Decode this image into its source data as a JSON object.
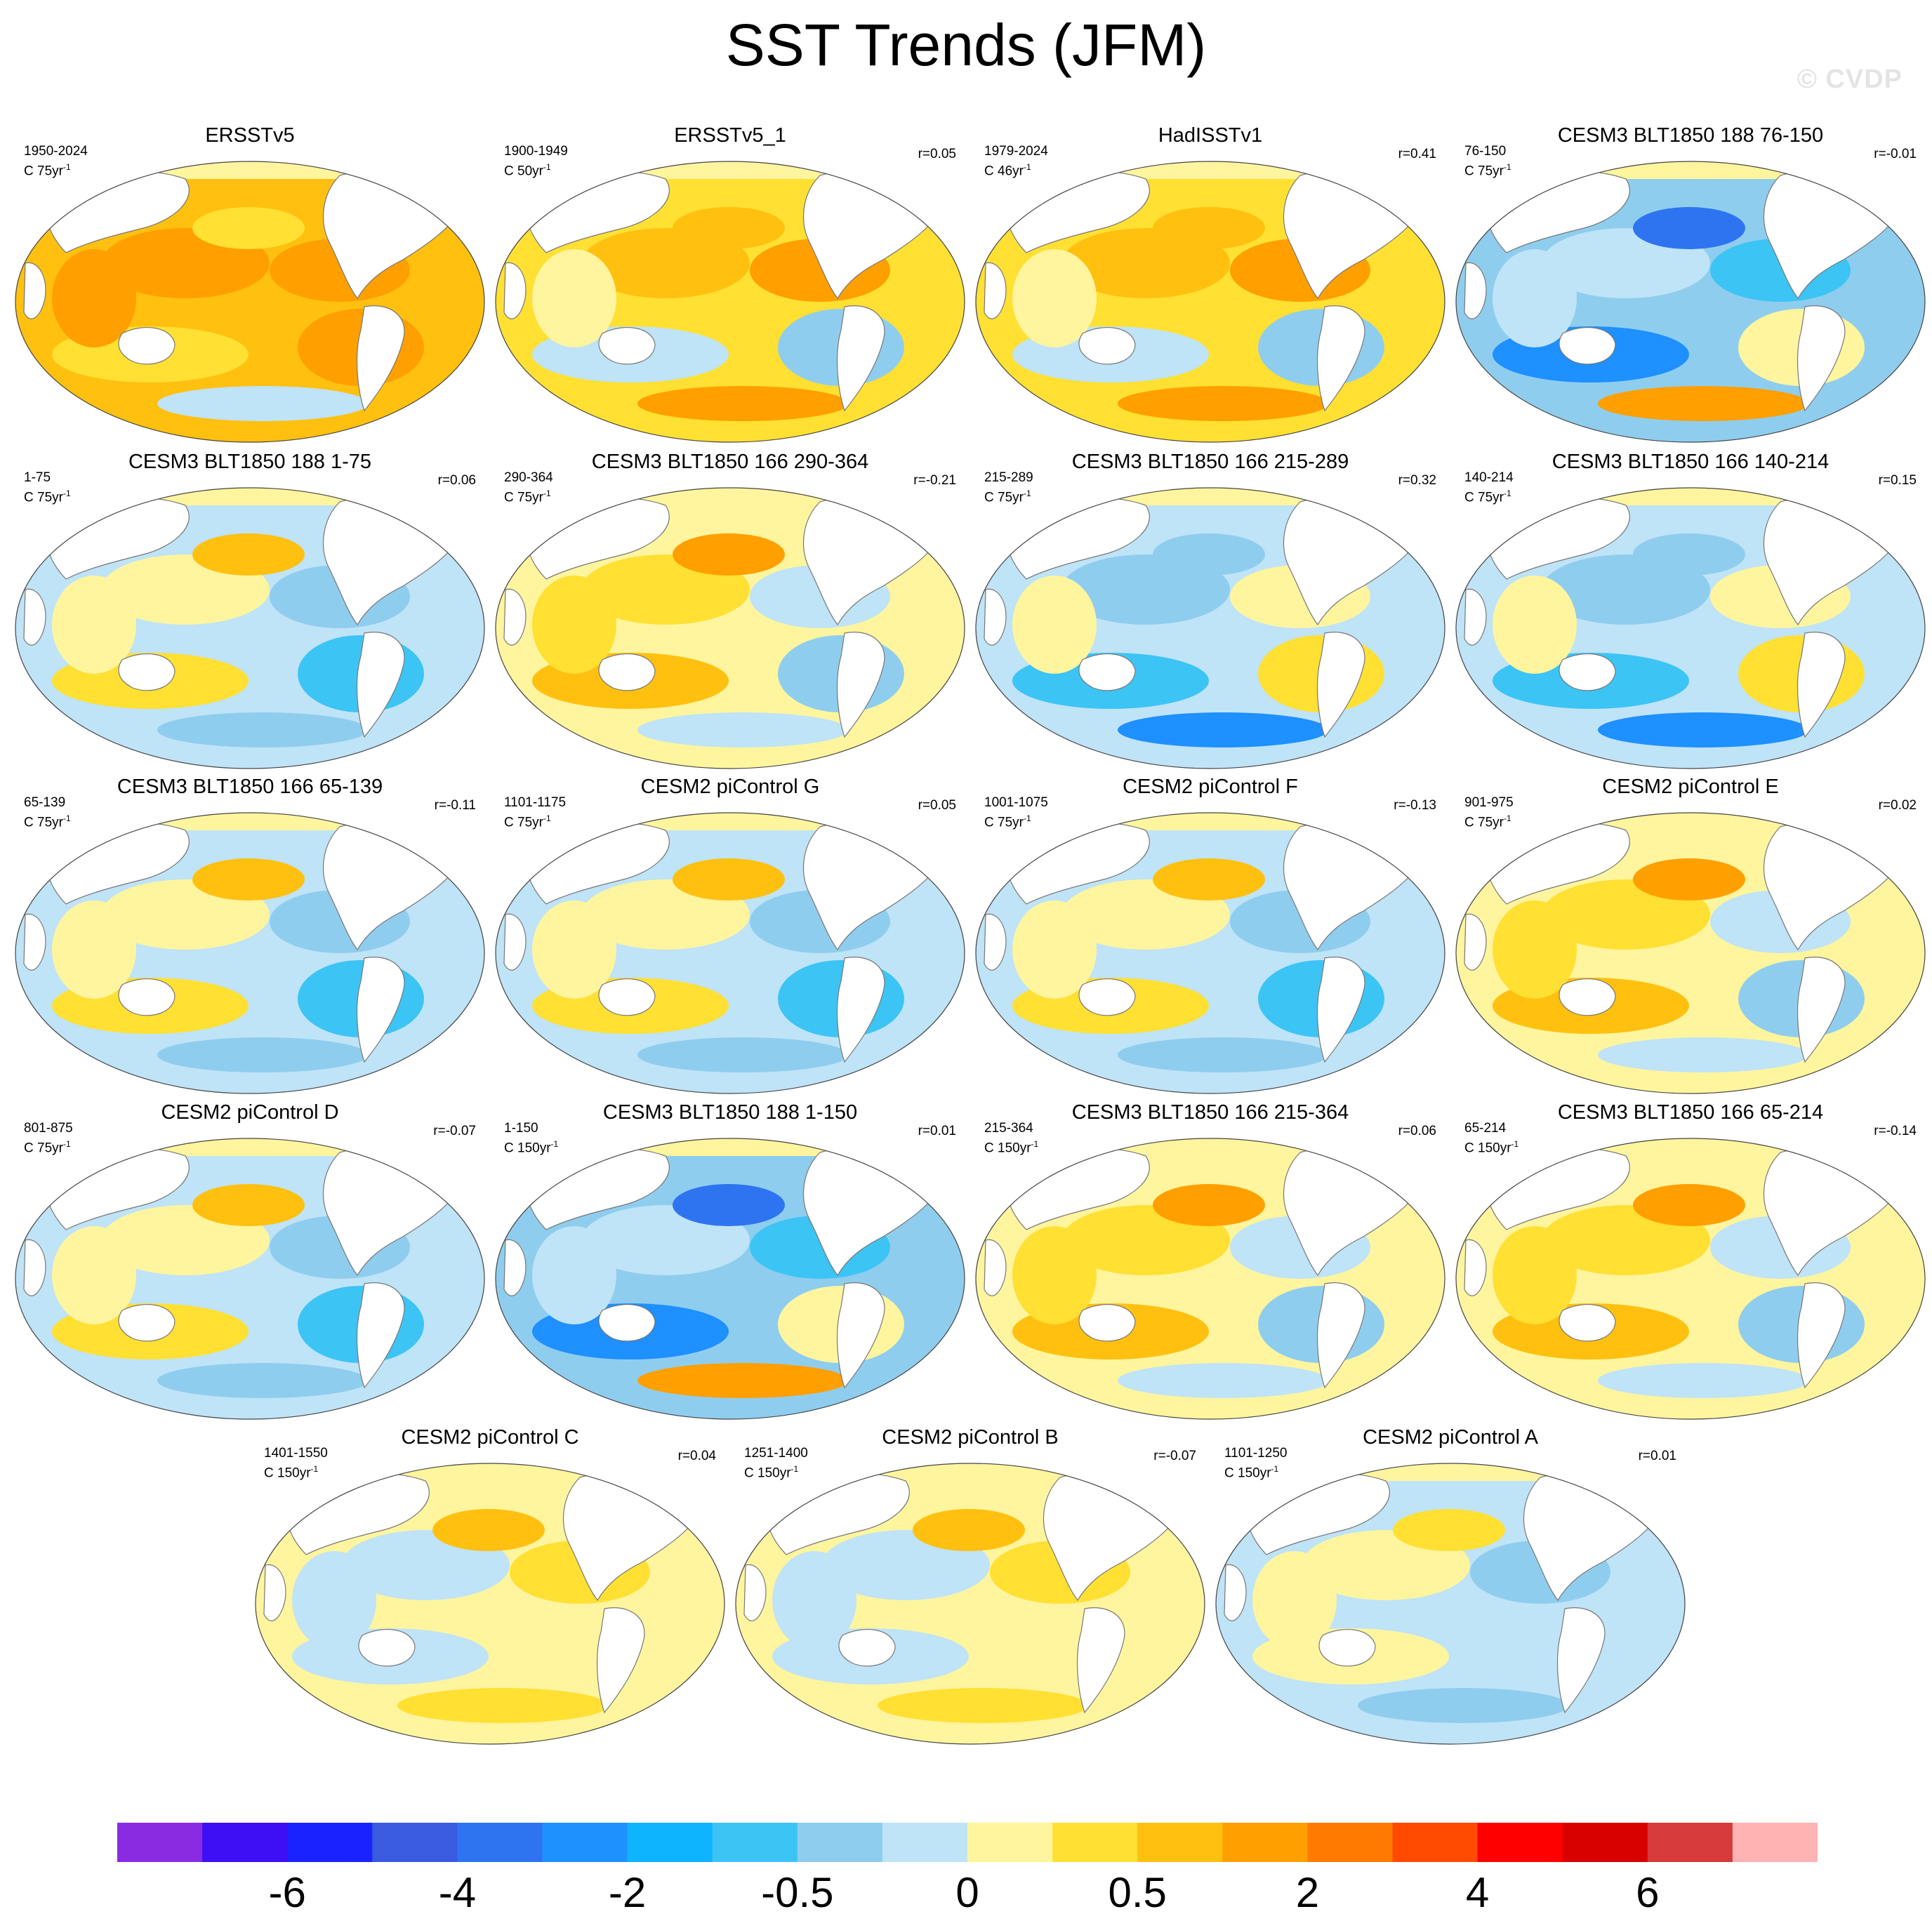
{
  "title": "SST Trends (JFM)",
  "watermark": "© CVDP",
  "panels": [
    {
      "title": "ERSSTv5",
      "period": "1950-2024",
      "units_base": "C 75yr",
      "units_exp": "-1",
      "corr": "",
      "palette": "warm_strong"
    },
    {
      "title": "ERSSTv5_1",
      "period": "1900-1949",
      "units_base": "C 50yr",
      "units_exp": "-1",
      "corr": "r=0.05",
      "palette": "warm"
    },
    {
      "title": "HadISSTv1",
      "period": "1979-2024",
      "units_base": "C 46yr",
      "units_exp": "-1",
      "corr": "r=0.41",
      "palette": "warm"
    },
    {
      "title": "CESM3 BLT1850 188 76-150",
      "period": "76-150",
      "units_base": "C 75yr",
      "units_exp": "-1",
      "corr": "r=-0.01",
      "palette": "cool_strong"
    },
    {
      "title": "CESM3 BLT1850 188 1-75",
      "period": "1-75",
      "units_base": "C 75yr",
      "units_exp": "-1",
      "corr": "r=0.06",
      "palette": "mixed"
    },
    {
      "title": "CESM3 BLT1850 166 290-364",
      "period": "290-364",
      "units_base": "C 75yr",
      "units_exp": "-1",
      "corr": "r=-0.21",
      "palette": "mixed_warm"
    },
    {
      "title": "CESM3 BLT1850 166 215-289",
      "period": "215-289",
      "units_base": "C 75yr",
      "units_exp": "-1",
      "corr": "r=0.32",
      "palette": "mixed_cool"
    },
    {
      "title": "CESM3 BLT1850 166 140-214",
      "period": "140-214",
      "units_base": "C 75yr",
      "units_exp": "-1",
      "corr": "r=0.15",
      "palette": "mixed_cool"
    },
    {
      "title": "CESM3 BLT1850 166 65-139",
      "period": "65-139",
      "units_base": "C 75yr",
      "units_exp": "-1",
      "corr": "r=-0.11",
      "palette": "mixed"
    },
    {
      "title": "CESM2 piControl G",
      "period": "1101-1175",
      "units_base": "C 75yr",
      "units_exp": "-1",
      "corr": "r=0.05",
      "palette": "mixed"
    },
    {
      "title": "CESM2 piControl F",
      "period": "1001-1075",
      "units_base": "C 75yr",
      "units_exp": "-1",
      "corr": "r=-0.13",
      "palette": "mixed"
    },
    {
      "title": "CESM2 piControl E",
      "period": "901-975",
      "units_base": "C 75yr",
      "units_exp": "-1",
      "corr": "r=0.02",
      "palette": "mixed_warm"
    },
    {
      "title": "CESM2 piControl D",
      "period": "801-875",
      "units_base": "C 75yr",
      "units_exp": "-1",
      "corr": "r=-0.07",
      "palette": "mixed"
    },
    {
      "title": "CESM3 BLT1850 188 1-150",
      "period": "1-150",
      "units_base": "C 150yr",
      "units_exp": "-1",
      "corr": "r=0.01",
      "palette": "cool_strong"
    },
    {
      "title": "CESM3 BLT1850 166 215-364",
      "period": "215-364",
      "units_base": "C 150yr",
      "units_exp": "-1",
      "corr": "r=0.06",
      "palette": "mixed_warm"
    },
    {
      "title": "CESM3 BLT1850 166 65-214",
      "period": "65-214",
      "units_base": "C 150yr",
      "units_exp": "-1",
      "corr": "r=-0.14",
      "palette": "mixed_warm"
    },
    {
      "title": "CESM2 piControl C",
      "period": "1401-1550",
      "units_base": "C 150yr",
      "units_exp": "-1",
      "corr": "r=0.04",
      "palette": "weak_warm"
    },
    {
      "title": "CESM2 piControl B",
      "period": "1251-1400",
      "units_base": "C 150yr",
      "units_exp": "-1",
      "corr": "r=-0.07",
      "palette": "weak_warm"
    },
    {
      "title": "CESM2 piControl A",
      "period": "1101-1250",
      "units_base": "C 150yr",
      "units_exp": "-1",
      "corr": "r=0.01",
      "palette": "weak_cool"
    }
  ],
  "colorbar": {
    "colors": [
      "#8a2be2",
      "#3d0ff5",
      "#1a22ff",
      "#3a5ae0",
      "#2e74f0",
      "#1e90ff",
      "#0fb4ff",
      "#3cc4f5",
      "#8fcdee",
      "#bfe3f7",
      "#fff59e",
      "#ffe033",
      "#ffc010",
      "#ff9f00",
      "#ff7b00",
      "#ff4a00",
      "#ff0000",
      "#d90000",
      "#d63a3a",
      "#ffb3b3"
    ],
    "labels": [
      "-6",
      "-4",
      "-2",
      "-0.5",
      "0",
      "0.5",
      "2",
      "4",
      "6"
    ],
    "label_boundaries": [
      2,
      4,
      6,
      8,
      10,
      12,
      14,
      16,
      18
    ]
  }
}
